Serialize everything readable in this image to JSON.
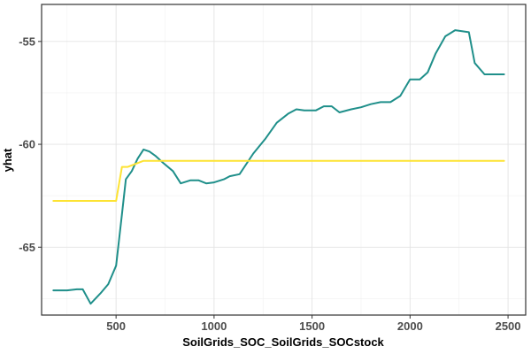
{
  "chart_data": {
    "type": "line",
    "xlabel": "SoilGrids_SOC_SoilGrids_SOCstock",
    "ylabel": "yhat",
    "xlim": [
      120,
      2590
    ],
    "ylim": [
      -68.3,
      -53.2
    ],
    "x_ticks": [
      500,
      1000,
      1500,
      2000,
      2500
    ],
    "y_ticks": [
      -55,
      -60,
      -65
    ],
    "x_tick_labels": [
      "500",
      "1000",
      "1500",
      "2000",
      "2500"
    ],
    "y_tick_labels": [
      "-55",
      "-60",
      "-65"
    ],
    "grid": true,
    "legend": "none",
    "series": [
      {
        "color": "#1F8F8A",
        "points": [
          [
            180,
            -67.1
          ],
          [
            250,
            -67.1
          ],
          [
            300,
            -67.05
          ],
          [
            330,
            -67.05
          ],
          [
            370,
            -67.75
          ],
          [
            420,
            -67.25
          ],
          [
            460,
            -66.8
          ],
          [
            500,
            -65.9
          ],
          [
            530,
            -63.4
          ],
          [
            550,
            -61.7
          ],
          [
            580,
            -61.3
          ],
          [
            610,
            -60.7
          ],
          [
            640,
            -60.25
          ],
          [
            670,
            -60.35
          ],
          [
            700,
            -60.55
          ],
          [
            740,
            -60.9
          ],
          [
            790,
            -61.3
          ],
          [
            830,
            -61.9
          ],
          [
            880,
            -61.75
          ],
          [
            920,
            -61.75
          ],
          [
            960,
            -61.9
          ],
          [
            1000,
            -61.85
          ],
          [
            1050,
            -61.7
          ],
          [
            1080,
            -61.55
          ],
          [
            1130,
            -61.45
          ],
          [
            1200,
            -60.45
          ],
          [
            1260,
            -59.75
          ],
          [
            1320,
            -58.95
          ],
          [
            1380,
            -58.5
          ],
          [
            1420,
            -58.3
          ],
          [
            1460,
            -58.35
          ],
          [
            1520,
            -58.35
          ],
          [
            1560,
            -58.15
          ],
          [
            1600,
            -58.15
          ],
          [
            1640,
            -58.45
          ],
          [
            1700,
            -58.3
          ],
          [
            1750,
            -58.2
          ],
          [
            1800,
            -58.05
          ],
          [
            1850,
            -57.95
          ],
          [
            1900,
            -57.95
          ],
          [
            1950,
            -57.65
          ],
          [
            2000,
            -56.85
          ],
          [
            2050,
            -56.85
          ],
          [
            2090,
            -56.5
          ],
          [
            2130,
            -55.6
          ],
          [
            2180,
            -54.75
          ],
          [
            2230,
            -54.45
          ],
          [
            2300,
            -54.55
          ],
          [
            2330,
            -56.05
          ],
          [
            2380,
            -56.6
          ],
          [
            2480,
            -56.6
          ]
        ]
      },
      {
        "color": "#FDE333",
        "points": [
          [
            180,
            -62.75
          ],
          [
            500,
            -62.75
          ],
          [
            530,
            -61.1
          ],
          [
            560,
            -61.1
          ],
          [
            640,
            -60.8
          ],
          [
            700,
            -60.8
          ],
          [
            2480,
            -60.8
          ]
        ]
      }
    ]
  }
}
